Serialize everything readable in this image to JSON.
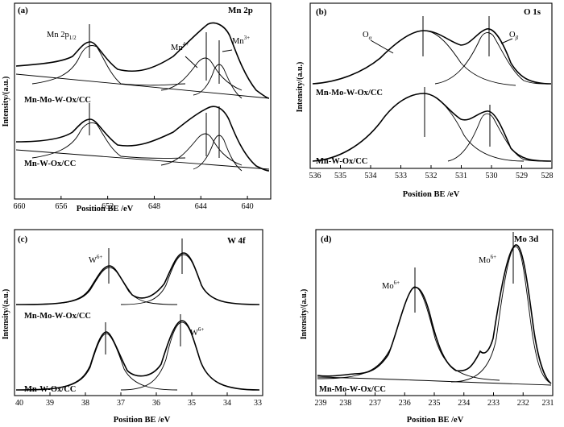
{
  "chart_data": [
    {
      "panel": "(a)",
      "type": "line",
      "title": "Mn 2p",
      "xlabel": "Position BE /eV",
      "ylabel": "Intensity/(a.u.)",
      "xlim": [
        660,
        638
      ],
      "xticks": [
        660,
        656,
        652,
        648,
        644,
        640
      ],
      "annotations": [
        "Mn 2p1/2",
        "Mn4+",
        "Mn3+"
      ],
      "series": [
        {
          "name": "Mn-Mo-W-Ox/CC",
          "x": [
            660,
            657,
            655,
            654,
            653,
            651,
            648,
            646,
            644,
            643,
            642,
            641,
            640,
            639,
            638
          ],
          "y": [
            0.34,
            0.44,
            0.72,
            0.86,
            0.76,
            0.46,
            0.4,
            0.46,
            0.78,
            0.95,
            1.0,
            0.84,
            0.42,
            0.26,
            0.23
          ],
          "components": [
            {
              "label": "Mn 2p1/2",
              "center": 653.8
            },
            {
              "label": "Mn4+",
              "center": 643.1
            },
            {
              "label": "Mn3+",
              "center": 641.8
            }
          ]
        },
        {
          "name": "Mn-W-Ox/CC",
          "x": [
            660,
            657,
            655,
            654,
            653,
            651,
            648,
            646,
            644,
            643,
            642,
            641,
            640,
            639,
            638
          ],
          "y": [
            0.3,
            0.38,
            0.64,
            0.76,
            0.66,
            0.4,
            0.34,
            0.4,
            0.72,
            0.9,
            0.96,
            0.8,
            0.38,
            0.24,
            0.21
          ],
          "components": [
            {
              "label": "Mn 2p1/2",
              "center": 653.8
            },
            {
              "label": "Mn4+",
              "center": 643.1
            },
            {
              "label": "Mn3+",
              "center": 641.8
            }
          ]
        }
      ]
    },
    {
      "panel": "(b)",
      "type": "line",
      "title": "O 1s",
      "xlabel": "Position BE /eV",
      "ylabel": "Intensity/(a.u.)",
      "xlim": [
        536,
        528
      ],
      "xticks": [
        536,
        535,
        534,
        533,
        532,
        531,
        530,
        529,
        528
      ],
      "annotations": [
        "Oα",
        "Oβ"
      ],
      "series": [
        {
          "name": "Mn-Mo-W-Ox/CC",
          "x": [
            536,
            535,
            534,
            533,
            532.3,
            531.5,
            531,
            530.3,
            529.5,
            529,
            528.5,
            528
          ],
          "y": [
            0.05,
            0.12,
            0.4,
            0.84,
            1.0,
            0.8,
            0.72,
            0.86,
            0.55,
            0.22,
            0.08,
            0.04
          ],
          "components": [
            {
              "label": "Oα",
              "center": 532.3
            },
            {
              "label": "Oβ",
              "center": 530.2
            }
          ]
        },
        {
          "name": "Mn-W-Ox/CC",
          "x": [
            536,
            535,
            534,
            533,
            532.3,
            531.5,
            531,
            530.3,
            529.5,
            529,
            528.5,
            528
          ],
          "y": [
            0.05,
            0.12,
            0.42,
            0.86,
            1.0,
            0.7,
            0.54,
            0.58,
            0.4,
            0.16,
            0.06,
            0.03
          ],
          "components": [
            {
              "label": "Oα",
              "center": 532.3
            },
            {
              "label": "Oβ",
              "center": 530.2
            }
          ]
        }
      ]
    },
    {
      "panel": "(c)",
      "type": "line",
      "title": "W 4f",
      "xlabel": "Position BE /eV",
      "ylabel": "Intensity/(a.u.)",
      "xlim": [
        40,
        33
      ],
      "xticks": [
        40,
        39,
        38,
        37,
        36,
        35,
        34,
        33
      ],
      "annotations": [
        "W6+",
        "W6+"
      ],
      "series": [
        {
          "name": "Mn-Mo-W-Ox/CC",
          "x": [
            40,
            39,
            38.5,
            38,
            37.5,
            37,
            36.5,
            36,
            35.5,
            35.3,
            35,
            34.5,
            34,
            33
          ],
          "y": [
            0.02,
            0.06,
            0.3,
            0.78,
            0.86,
            0.45,
            0.12,
            0.4,
            0.92,
            1.0,
            0.88,
            0.4,
            0.1,
            0.02
          ],
          "components": [
            {
              "label": "W6+",
              "center": 37.5
            },
            {
              "label": "W6+",
              "center": 35.3
            }
          ]
        },
        {
          "name": "Mn-W-Ox/CC",
          "x": [
            40,
            39,
            38.5,
            38,
            37.5,
            37,
            36.5,
            36,
            35.5,
            35.3,
            35,
            34.5,
            34,
            33
          ],
          "y": [
            0.02,
            0.06,
            0.3,
            0.8,
            0.88,
            0.46,
            0.12,
            0.4,
            0.92,
            1.0,
            0.88,
            0.4,
            0.1,
            0.02
          ],
          "components": [
            {
              "label": "W6+",
              "center": 37.5
            },
            {
              "label": "W6+",
              "center": 35.3
            }
          ]
        }
      ]
    },
    {
      "panel": "(d)",
      "type": "line",
      "title": "Mo 3d",
      "xlabel": "Position BE /eV",
      "ylabel": "Intensity/(a.u.)",
      "xlim": [
        239,
        231
      ],
      "xticks": [
        239,
        238,
        237,
        236,
        235,
        234,
        233,
        232,
        231
      ],
      "annotations": [
        "Mo6+",
        "Mo6+"
      ],
      "series": [
        {
          "name": "Mn-Mo-W-Ox/CC",
          "x": [
            239,
            238,
            237,
            236.5,
            236,
            235.6,
            235,
            234.5,
            234,
            233.5,
            233,
            232.8,
            232.4,
            232,
            231.5,
            231
          ],
          "y": [
            0.06,
            0.07,
            0.12,
            0.24,
            0.52,
            0.66,
            0.44,
            0.2,
            0.1,
            0.16,
            0.45,
            0.78,
            1.0,
            0.7,
            0.18,
            0.05
          ],
          "components": [
            {
              "label": "Mo6+",
              "center": 235.6
            },
            {
              "label": "Mo6+",
              "center": 232.45
            }
          ]
        }
      ]
    }
  ],
  "panels": {
    "a": {
      "tag": "(a)",
      "title": "Mn 2p",
      "xlabel": "Position BE /eV",
      "ylabel": "Intensity/(a.u.)",
      "label_top": "Mn-Mo-W-Ox/CC",
      "label_bottom": "Mn-W-Ox/CC",
      "ann_main": "Mn 2p",
      "ann_sub": "1/2",
      "ann_mn4": "Mn",
      "ann_mn4_sup": "4+",
      "ann_mn3": "Mn",
      "ann_mn3_sup": "3+"
    },
    "b": {
      "tag": "(b)",
      "title": "O 1s",
      "xlabel": "Position BE /eV",
      "ylabel": "Intensity/(a.u.)",
      "label_top": "Mn-Mo-W-Ox/CC",
      "label_bottom": "Mn-W-Ox/CC",
      "ann_alpha": "O",
      "ann_alpha_sub": "α",
      "ann_beta": "O",
      "ann_beta_sub": "β"
    },
    "c": {
      "tag": "(c)",
      "title": "W 4f",
      "xlabel": "Position BE /eV",
      "ylabel": "Intensity/(a.u.)",
      "label_top": "Mn-Mo-W-Ox/CC",
      "label_bottom": "Mn-W-Ox/CC",
      "ann_w1": "W",
      "ann_w1_sup": "6+",
      "ann_w2": "W",
      "ann_w2_sup": "6+"
    },
    "d": {
      "tag": "(d)",
      "title": "Mo 3d",
      "xlabel": "Position BE /eV",
      "ylabel": "Intensity/(a.u.)",
      "label_bottom": "Mn-Mo-W-Ox/CC",
      "ann_mo1": "Mo",
      "ann_mo1_sup": "6+",
      "ann_mo2": "Mo",
      "ann_mo2_sup": "6+"
    }
  }
}
